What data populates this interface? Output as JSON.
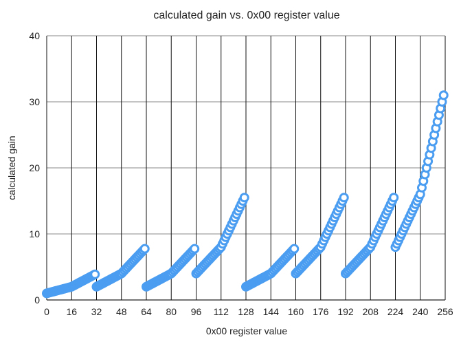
{
  "chart_data": {
    "type": "scatter",
    "title": "calculated gain vs. 0x00 register value",
    "xlabel": "0x00 register value",
    "ylabel": "calculated gain",
    "xlim": [
      0,
      256
    ],
    "ylim": [
      0,
      40
    ],
    "x_ticks": [
      0,
      16,
      32,
      48,
      64,
      80,
      96,
      112,
      128,
      144,
      160,
      176,
      192,
      208,
      224,
      240,
      256
    ],
    "y_ticks": [
      0,
      10,
      20,
      30,
      40
    ],
    "grid": {
      "vertical": true,
      "horizontal": true
    },
    "legend": "none",
    "marker_color": "#4a9df0",
    "marker_fill": "#ffffff",
    "segments": [
      {
        "x_start": 0,
        "count": 32,
        "base": 1,
        "knee_x": 16,
        "knee_y": 2,
        "end_y": 3.875
      },
      {
        "x_start": 32,
        "count": 32,
        "base": 2,
        "knee_x": 48,
        "knee_y": 4,
        "end_y": 7.75
      },
      {
        "x_start": 64,
        "count": 32,
        "base": 2,
        "knee_x": 80,
        "knee_y": 4,
        "end_y": 7.75
      },
      {
        "x_start": 96,
        "count": 32,
        "base": 4,
        "knee_x": 112,
        "knee_y": 8,
        "end_y": 15.5
      },
      {
        "x_start": 128,
        "count": 32,
        "base": 2,
        "knee_x": 144,
        "knee_y": 4,
        "end_y": 7.75
      },
      {
        "x_start": 160,
        "count": 32,
        "base": 4,
        "knee_x": 176,
        "knee_y": 8,
        "end_y": 15.5
      },
      {
        "x_start": 192,
        "count": 32,
        "base": 4,
        "knee_x": 208,
        "knee_y": 8,
        "end_y": 15.5
      },
      {
        "x_start": 224,
        "count": 32,
        "base": 8,
        "knee_x": 240,
        "knee_y": 16,
        "end_y": 31
      }
    ]
  }
}
